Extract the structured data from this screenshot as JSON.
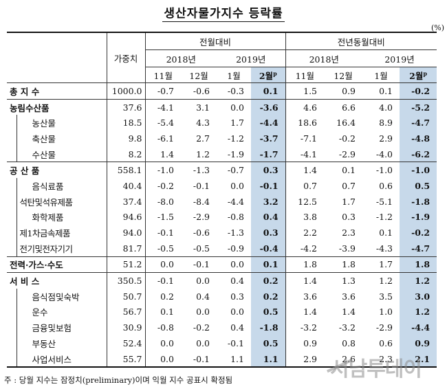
{
  "title": "생산자물가지수 등락률",
  "unit": "(%)",
  "header": {
    "weight": "가중치",
    "mom": "전월대비",
    "yoy": "전년동월대비",
    "y2018": "2018년",
    "y2019": "2019년",
    "months": [
      "11월",
      "12월",
      "1월",
      "2월"
    ],
    "prelim_sup": "p"
  },
  "rows": [
    {
      "label": "총   지   수",
      "weight": "1000.0",
      "mom": [
        "-0.7",
        "-0.6",
        "-0.3",
        "0.1"
      ],
      "yoy": [
        "1.5",
        "0.9",
        "0.1",
        "-0.2"
      ]
    },
    {
      "label": "농림수산품",
      "weight": "37.6",
      "mom": [
        "-4.1",
        "3.1",
        "0.0",
        "-3.6"
      ],
      "yoy": [
        "4.6",
        "6.6",
        "4.0",
        "-5.2"
      ]
    },
    {
      "label": "농산물",
      "weight": "18.5",
      "mom": [
        "-5.4",
        "4.3",
        "1.7",
        "-4.4"
      ],
      "yoy": [
        "18.6",
        "16.4",
        "8.9",
        "-4.7"
      ]
    },
    {
      "label": "축산물",
      "weight": "9.8",
      "mom": [
        "-6.1",
        "2.7",
        "-1.2",
        "-3.7"
      ],
      "yoy": [
        "-7.1",
        "-0.2",
        "2.9",
        "-4.8"
      ]
    },
    {
      "label": "수산물",
      "weight": "8.2",
      "mom": [
        "1.4",
        "1.2",
        "-1.9",
        "-1.7"
      ],
      "yoy": [
        "-4.1",
        "-2.9",
        "-4.0",
        "-6.2"
      ]
    },
    {
      "label": "공  산  품",
      "weight": "558.1",
      "mom": [
        "-1.0",
        "-1.3",
        "-0.7",
        "0.3"
      ],
      "yoy": [
        "1.4",
        "0.1",
        "-1.0",
        "-1.0"
      ]
    },
    {
      "label": "음식료품",
      "weight": "40.4",
      "mom": [
        "-0.2",
        "-0.1",
        "0.0",
        "-0.1"
      ],
      "yoy": [
        "0.7",
        "0.7",
        "0.6",
        "0.5"
      ]
    },
    {
      "label": "석탄및석유제품",
      "weight": "37.4",
      "mom": [
        "-8.0",
        "-8.4",
        "-4.4",
        "3.2"
      ],
      "yoy": [
        "12.5",
        "1.7",
        "-5.1",
        "-1.8"
      ]
    },
    {
      "label": "화학제품",
      "weight": "94.6",
      "mom": [
        "-1.5",
        "-2.9",
        "-0.8",
        "0.4"
      ],
      "yoy": [
        "3.8",
        "0.3",
        "-1.2",
        "-1.9"
      ]
    },
    {
      "label": "제1차금속제품",
      "weight": "94.0",
      "mom": [
        "-0.1",
        "-0.6",
        "-1.3",
        "0.3"
      ],
      "yoy": [
        "2.2",
        "2.3",
        "0.1",
        "-0.2"
      ]
    },
    {
      "label": "전기및전자기기",
      "weight": "81.7",
      "mom": [
        "-0.5",
        "-0.5",
        "-0.9",
        "-0.4"
      ],
      "yoy": [
        "-4.2",
        "-3.9",
        "-4.3",
        "-4.7"
      ]
    },
    {
      "label": "전력·가스·수도",
      "weight": "51.2",
      "mom": [
        "0.0",
        "-0.1",
        "0.0",
        "0.1"
      ],
      "yoy": [
        "1.8",
        "1.8",
        "1.7",
        "1.8"
      ]
    },
    {
      "label": "서   비   스",
      "weight": "350.5",
      "mom": [
        "-0.1",
        "0.0",
        "0.4",
        "0.2"
      ],
      "yoy": [
        "1.4",
        "1.3",
        "1.2",
        "1.2"
      ]
    },
    {
      "label": "음식점및숙박",
      "weight": "50.7",
      "mom": [
        "0.2",
        "0.4",
        "0.3",
        "0.2"
      ],
      "yoy": [
        "3.6",
        "3.6",
        "3.5",
        "3.0"
      ]
    },
    {
      "label": "운수",
      "weight": "56.7",
      "mom": [
        "0.1",
        "0.0",
        "0.0",
        "0.5"
      ],
      "yoy": [
        "1.4",
        "1.4",
        "1.0",
        "1.2"
      ]
    },
    {
      "label": "금융및보험",
      "weight": "30.9",
      "mom": [
        "-0.8",
        "-0.2",
        "0.4",
        "-1.8"
      ],
      "yoy": [
        "-3.2",
        "-3.2",
        "-2.9",
        "-4.4"
      ]
    },
    {
      "label": "부동산",
      "weight": "52.4",
      "mom": [
        "0.0",
        "0.0",
        "-0.1",
        "0.5"
      ],
      "yoy": [
        "0.9",
        "0.8",
        "0.6",
        "0.9"
      ]
    },
    {
      "label": "사업서비스",
      "weight": "55.7",
      "mom": [
        "0.0",
        "-0.1",
        "1.1",
        "1.1"
      ],
      "yoy": [
        "2.9",
        "2.6",
        "2.3",
        "2.1"
      ]
    }
  ],
  "note": "주 : 당월 지수는 잠정치(preliminary)이며 익월 지수 공표시 확정됨",
  "watermark": "서남투데이"
}
